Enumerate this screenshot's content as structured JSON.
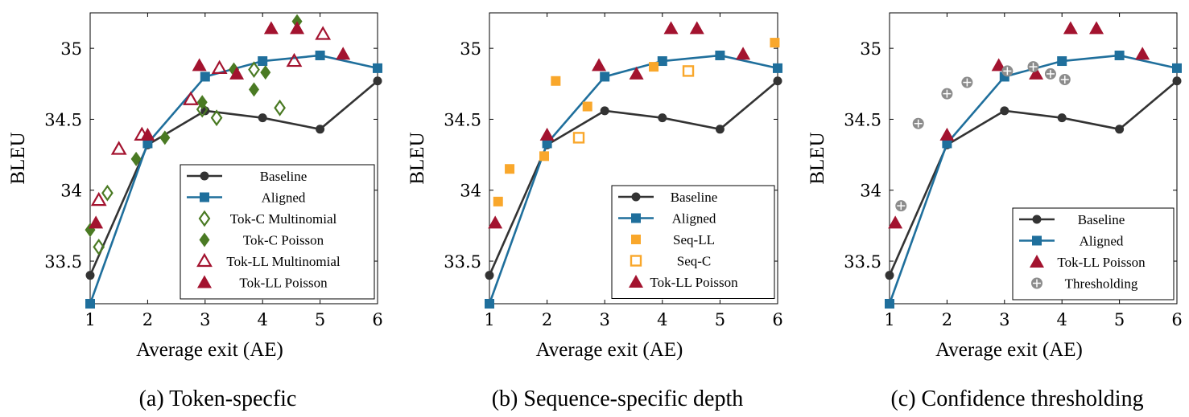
{
  "colors": {
    "baseline": "#333333",
    "aligned": "#1f6f9c",
    "tok_c": "#4a7a23",
    "tok_ll": "#a3132f",
    "seq": "#f9a72b",
    "thresholding": "#8c8c8c"
  },
  "chart_data": [
    {
      "type": "line",
      "caption": "(a) Token-specfic",
      "xlabel": "Average exit (AE)",
      "ylabel": "BLEU",
      "xlim": [
        1,
        6
      ],
      "ylim": [
        33.2,
        35.25
      ],
      "xticks": [
        "1",
        "2",
        "3",
        "4",
        "5",
        "6"
      ],
      "yticks": [
        "33.5",
        "34",
        "34.5",
        "35"
      ],
      "legend_position": "bottom-right",
      "series": [
        {
          "name": "Baseline",
          "key": "baseline",
          "marker": "circle",
          "line": true,
          "x": [
            1,
            2,
            3,
            4,
            5,
            6
          ],
          "y": [
            33.4,
            34.32,
            34.56,
            34.51,
            34.43,
            34.77
          ]
        },
        {
          "name": "Aligned",
          "key": "aligned",
          "marker": "square",
          "line": true,
          "x": [
            1,
            2,
            3,
            4,
            5,
            6
          ],
          "y": [
            33.2,
            34.33,
            34.8,
            34.91,
            34.95,
            34.86
          ]
        },
        {
          "name": "Tok-C Multinomial",
          "key": "tok_c",
          "marker": "diamond-open",
          "line": false,
          "x": [
            1.15,
            1.3,
            2.95,
            3.2,
            3.85,
            4.3
          ],
          "y": [
            33.6,
            33.98,
            34.57,
            34.51,
            34.85,
            34.58
          ]
        },
        {
          "name": "Tok-C Poisson",
          "key": "tok_c",
          "marker": "diamond",
          "line": false,
          "x": [
            1.0,
            1.8,
            2.3,
            2.95,
            3.5,
            3.85,
            4.05,
            4.6
          ],
          "y": [
            33.72,
            34.22,
            34.37,
            34.62,
            34.85,
            34.71,
            34.83,
            35.19
          ]
        },
        {
          "name": "Tok-LL Multinomial",
          "key": "tok_ll",
          "marker": "triangle-open",
          "line": false,
          "x": [
            1.15,
            1.5,
            1.9,
            2.75,
            3.25,
            4.55,
            5.05
          ],
          "y": [
            33.93,
            34.29,
            34.39,
            34.64,
            34.86,
            34.91,
            35.1
          ]
        },
        {
          "name": "Tok-LL Poisson",
          "key": "tok_ll",
          "marker": "triangle",
          "line": false,
          "x": [
            1.1,
            2.0,
            2.9,
            3.55,
            4.15,
            4.6,
            5.4
          ],
          "y": [
            33.77,
            34.39,
            34.88,
            34.82,
            35.14,
            35.14,
            34.96
          ]
        }
      ]
    },
    {
      "type": "line",
      "caption": "(b) Sequence-specific depth",
      "xlabel": "Average exit (AE)",
      "ylabel": "BLEU",
      "xlim": [
        1,
        6
      ],
      "ylim": [
        33.2,
        35.25
      ],
      "xticks": [
        "1",
        "2",
        "3",
        "4",
        "5",
        "6"
      ],
      "yticks": [
        "33.5",
        "34",
        "34.5",
        "35"
      ],
      "legend_position": "bottom-right",
      "series": [
        {
          "name": "Baseline",
          "key": "baseline",
          "marker": "circle",
          "line": true,
          "x": [
            1,
            2,
            3,
            4,
            5,
            6
          ],
          "y": [
            33.4,
            34.32,
            34.56,
            34.51,
            34.43,
            34.77
          ]
        },
        {
          "name": "Aligned",
          "key": "aligned",
          "marker": "square",
          "line": true,
          "x": [
            1,
            2,
            3,
            4,
            5,
            6
          ],
          "y": [
            33.2,
            34.33,
            34.8,
            34.91,
            34.95,
            34.86
          ]
        },
        {
          "name": "Seq-LL",
          "key": "seq",
          "marker": "square",
          "line": false,
          "x": [
            1.15,
            1.35,
            1.95,
            2.15,
            2.7,
            3.85,
            5.95
          ],
          "y": [
            33.92,
            34.15,
            34.24,
            34.77,
            34.59,
            34.87,
            35.04
          ]
        },
        {
          "name": "Seq-C",
          "key": "seq",
          "marker": "square-open",
          "line": false,
          "x": [
            2.55,
            4.45
          ],
          "y": [
            34.37,
            34.84
          ]
        },
        {
          "name": "Tok-LL Poisson",
          "key": "tok_ll",
          "marker": "triangle",
          "line": false,
          "x": [
            1.1,
            2.0,
            2.9,
            3.55,
            4.15,
            4.6,
            5.4
          ],
          "y": [
            33.77,
            34.39,
            34.88,
            34.82,
            35.14,
            35.14,
            34.96
          ]
        }
      ]
    },
    {
      "type": "line",
      "caption": "(c) Confidence thresholding",
      "xlabel": "Average exit (AE)",
      "ylabel": "BLEU",
      "xlim": [
        1,
        6
      ],
      "ylim": [
        33.2,
        35.25
      ],
      "xticks": [
        "1",
        "2",
        "3",
        "4",
        "5",
        "6"
      ],
      "yticks": [
        "33.5",
        "34",
        "34.5",
        "35"
      ],
      "legend_position": "bottom-right",
      "series": [
        {
          "name": "Baseline",
          "key": "baseline",
          "marker": "circle",
          "line": true,
          "x": [
            1,
            2,
            3,
            4,
            5,
            6
          ],
          "y": [
            33.4,
            34.32,
            34.56,
            34.51,
            34.43,
            34.77
          ]
        },
        {
          "name": "Aligned",
          "key": "aligned",
          "marker": "square",
          "line": true,
          "x": [
            1,
            2,
            3,
            4,
            5,
            6
          ],
          "y": [
            33.2,
            34.33,
            34.8,
            34.91,
            34.95,
            34.86
          ]
        },
        {
          "name": "Tok-LL Poisson",
          "key": "tok_ll",
          "marker": "triangle",
          "line": false,
          "x": [
            1.1,
            2.0,
            2.9,
            3.55,
            4.15,
            4.6,
            5.4
          ],
          "y": [
            33.77,
            34.39,
            34.88,
            34.82,
            35.14,
            35.14,
            34.96
          ]
        },
        {
          "name": "Thresholding",
          "key": "thresholding",
          "marker": "oplus",
          "line": false,
          "x": [
            1.2,
            1.5,
            2.0,
            2.35,
            3.05,
            3.5,
            3.8,
            4.05
          ],
          "y": [
            33.89,
            34.47,
            34.68,
            34.76,
            34.84,
            34.87,
            34.82,
            34.78
          ]
        }
      ]
    }
  ]
}
